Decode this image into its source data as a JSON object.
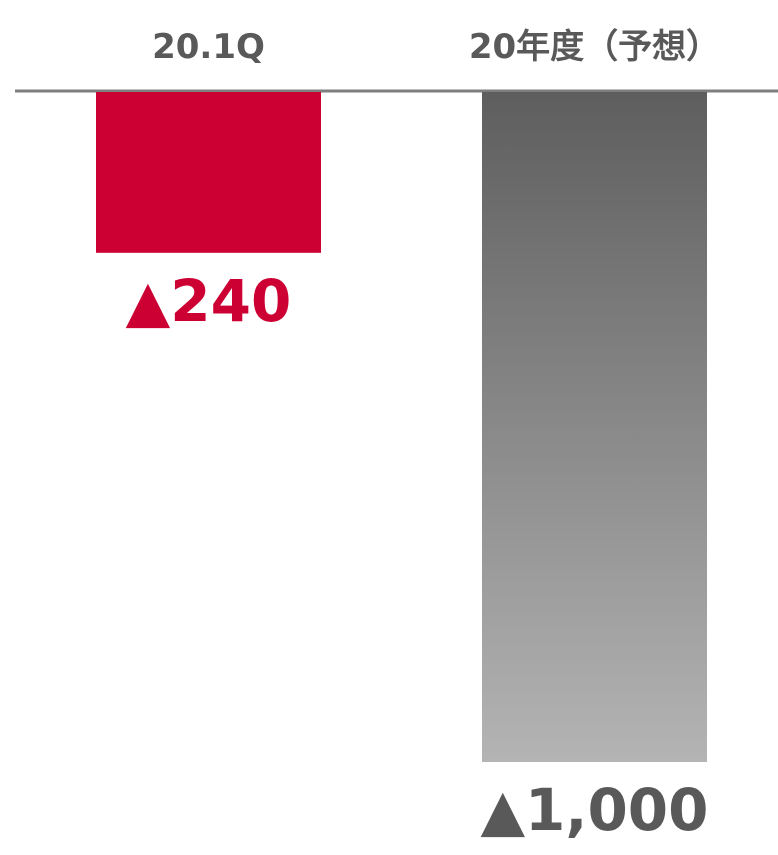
{
  "chart_data": {
    "type": "bar",
    "orientation": "vertical-negative",
    "categories": [
      "20.1Q",
      "20年度（予想）"
    ],
    "values": [
      -240,
      -1000
    ],
    "value_labels": [
      "▲240",
      "▲1,000"
    ],
    "bar_colors": [
      "#cc0033",
      "gradient-gray"
    ],
    "label_colors": [
      "#cc0033",
      "#595959"
    ],
    "axis_color": "#7f7f7f",
    "grid": false,
    "ylim": [
      -1000,
      0
    ]
  }
}
